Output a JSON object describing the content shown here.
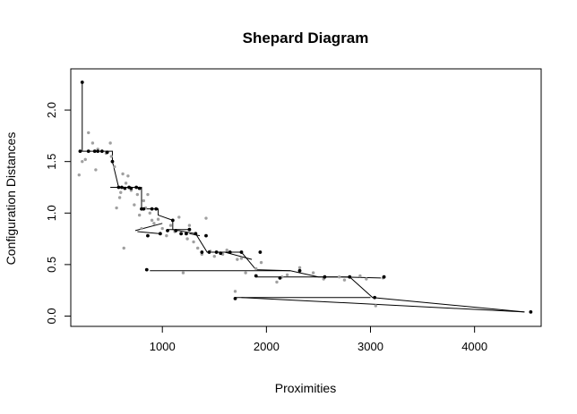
{
  "chart_data": {
    "type": "scatter",
    "title": "Shepard Diagram",
    "xlabel": "Proximities",
    "ylabel": "Configuration Distances",
    "xlim": [
      120,
      4640
    ],
    "ylim": [
      -0.1,
      2.4
    ],
    "xticks": [
      1000,
      2000,
      3000,
      4000
    ],
    "yticks": [
      0.0,
      0.5,
      1.0,
      1.5,
      2.0
    ],
    "xtick_labels": [
      "1000",
      "2000",
      "3000",
      "4000"
    ],
    "ytick_labels": [
      "0.0",
      "0.5",
      "1.0",
      "1.5",
      "2.0"
    ],
    "grid": false,
    "legend": "none",
    "series": [
      {
        "role": "observed",
        "color": "#a0a0a0",
        "points": [
          [
            200,
            1.37
          ],
          [
            230,
            1.5
          ],
          [
            260,
            1.52
          ],
          [
            290,
            1.78
          ],
          [
            330,
            1.68
          ],
          [
            360,
            1.42
          ],
          [
            380,
            1.62
          ],
          [
            420,
            1.6
          ],
          [
            460,
            1.58
          ],
          [
            500,
            1.68
          ],
          [
            510,
            1.55
          ],
          [
            540,
            1.45
          ],
          [
            560,
            1.05
          ],
          [
            590,
            1.15
          ],
          [
            600,
            1.2
          ],
          [
            620,
            1.38
          ],
          [
            630,
            0.66
          ],
          [
            650,
            1.29
          ],
          [
            670,
            1.36
          ],
          [
            700,
            1.22
          ],
          [
            730,
            1.08
          ],
          [
            760,
            1.18
          ],
          [
            780,
            0.98
          ],
          [
            800,
            0.85
          ],
          [
            820,
            1.12
          ],
          [
            840,
            1.05
          ],
          [
            860,
            1.18
          ],
          [
            880,
            1.0
          ],
          [
            900,
            0.93
          ],
          [
            920,
            0.9
          ],
          [
            960,
            0.94
          ],
          [
            1000,
            0.85
          ],
          [
            1040,
            0.78
          ],
          [
            1080,
            0.88
          ],
          [
            1120,
            0.82
          ],
          [
            1160,
            0.96
          ],
          [
            1200,
            0.42
          ],
          [
            1240,
            0.75
          ],
          [
            1260,
            0.88
          ],
          [
            1300,
            0.72
          ],
          [
            1340,
            0.66
          ],
          [
            1380,
            0.6
          ],
          [
            1420,
            0.95
          ],
          [
            1460,
            0.63
          ],
          [
            1500,
            0.58
          ],
          [
            1580,
            0.6
          ],
          [
            1620,
            0.64
          ],
          [
            1700,
            0.24
          ],
          [
            1720,
            0.55
          ],
          [
            1760,
            0.56
          ],
          [
            1800,
            0.42
          ],
          [
            1900,
            0.46
          ],
          [
            1950,
            0.52
          ],
          [
            2100,
            0.33
          ],
          [
            2150,
            0.38
          ],
          [
            2200,
            0.4
          ],
          [
            2320,
            0.47
          ],
          [
            2450,
            0.42
          ],
          [
            2550,
            0.36
          ],
          [
            2700,
            0.38
          ],
          [
            2750,
            0.35
          ],
          [
            2800,
            0.38
          ],
          [
            2900,
            0.39
          ],
          [
            2960,
            0.36
          ],
          [
            3050,
            0.1
          ],
          [
            3120,
            0.37
          ]
        ]
      },
      {
        "role": "fitted",
        "color": "#000000",
        "points": [
          [
            210,
            1.6
          ],
          [
            230,
            2.27
          ],
          [
            290,
            1.6
          ],
          [
            350,
            1.6
          ],
          [
            380,
            1.6
          ],
          [
            420,
            1.6
          ],
          [
            470,
            1.59
          ],
          [
            520,
            1.5
          ],
          [
            580,
            1.25
          ],
          [
            610,
            1.25
          ],
          [
            640,
            1.24
          ],
          [
            680,
            1.25
          ],
          [
            700,
            1.24
          ],
          [
            750,
            1.25
          ],
          [
            780,
            1.24
          ],
          [
            800,
            1.04
          ],
          [
            820,
            1.04
          ],
          [
            850,
            0.45
          ],
          [
            860,
            0.78
          ],
          [
            900,
            1.04
          ],
          [
            940,
            1.04
          ],
          [
            980,
            0.8
          ],
          [
            1050,
            0.83
          ],
          [
            1100,
            0.93
          ],
          [
            1130,
            0.83
          ],
          [
            1180,
            0.8
          ],
          [
            1230,
            0.8
          ],
          [
            1260,
            0.84
          ],
          [
            1320,
            0.8
          ],
          [
            1380,
            0.62
          ],
          [
            1420,
            0.78
          ],
          [
            1450,
            0.62
          ],
          [
            1520,
            0.62
          ],
          [
            1560,
            0.61
          ],
          [
            1650,
            0.62
          ],
          [
            1700,
            0.17
          ],
          [
            1760,
            0.62
          ],
          [
            1900,
            0.39
          ],
          [
            1940,
            0.62
          ],
          [
            2130,
            0.37
          ],
          [
            2320,
            0.44
          ],
          [
            2560,
            0.38
          ],
          [
            2800,
            0.38
          ],
          [
            3040,
            0.18
          ],
          [
            3130,
            0.38
          ],
          [
            4540,
            0.04
          ]
        ]
      }
    ],
    "step_line": {
      "color": "#000000",
      "points": [
        [
          230,
          1.68
        ],
        [
          230,
          2.27
        ],
        [
          230,
          1.6
        ],
        [
          520,
          1.6
        ],
        [
          520,
          1.5
        ],
        [
          580,
          1.25
        ],
        [
          800,
          1.25
        ],
        [
          800,
          1.04
        ],
        [
          960,
          1.04
        ],
        [
          960,
          0.98
        ],
        [
          1100,
          0.93
        ],
        [
          1100,
          0.84
        ],
        [
          1320,
          0.8
        ],
        [
          1430,
          0.62
        ],
        [
          1520,
          0.62
        ],
        [
          1760,
          0.62
        ],
        [
          1900,
          0.45
        ],
        [
          2230,
          0.44
        ],
        [
          2500,
          0.38
        ],
        [
          2800,
          0.38
        ],
        [
          3020,
          0.18
        ],
        [
          4480,
          0.04
        ]
      ]
    },
    "extra_segments": [
      [
        [
          500,
          1.25
        ],
        [
          680,
          1.25
        ]
      ],
      [
        [
          740,
          0.83
        ],
        [
          1000,
          0.9
        ]
      ],
      [
        [
          760,
          0.82
        ],
        [
          980,
          0.8
        ]
      ],
      [
        [
          1050,
          0.84
        ],
        [
          1270,
          0.84
        ]
      ],
      [
        [
          1260,
          0.8
        ],
        [
          1360,
          0.78
        ]
      ],
      [
        [
          1430,
          0.62
        ],
        [
          1700,
          0.62
        ]
      ],
      [
        [
          1600,
          0.62
        ],
        [
          1860,
          0.55
        ]
      ],
      [
        [
          880,
          0.44
        ],
        [
          2230,
          0.44
        ]
      ],
      [
        [
          1900,
          0.38
        ],
        [
          2700,
          0.38
        ]
      ],
      [
        [
          1700,
          0.18
        ],
        [
          3000,
          0.18
        ]
      ],
      [
        [
          2700,
          0.38
        ],
        [
          3100,
          0.37
        ]
      ],
      [
        [
          1760,
          0.18
        ],
        [
          4480,
          0.04
        ]
      ]
    ]
  }
}
